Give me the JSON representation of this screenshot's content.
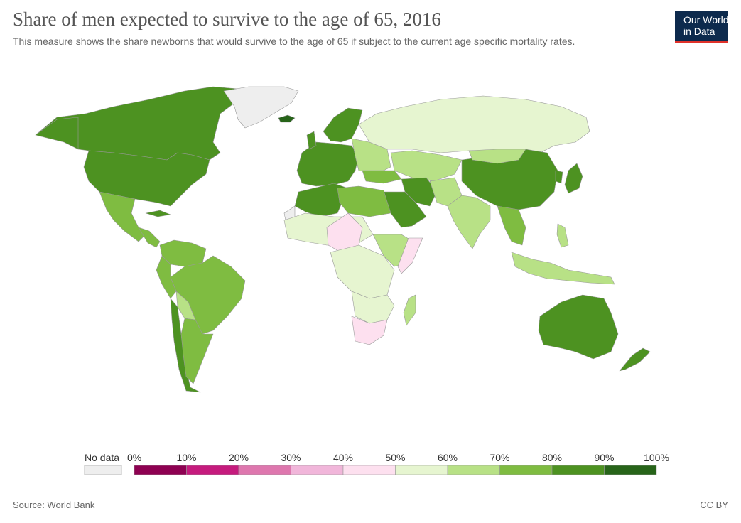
{
  "header": {
    "title": "Share of men expected to survive to the age of 65, 2016",
    "subtitle": "This measure shows the share newborns that would survive to the age of 65 if subject to the current age specific mortality rates."
  },
  "logo": {
    "line1": "Our World",
    "line2": "in Data",
    "bg": "#0d2a4d",
    "accent": "#e0322b"
  },
  "legend": {
    "no_data_label": "No data",
    "no_data_color": "#eeeeee",
    "ticks": [
      "0%",
      "10%",
      "20%",
      "30%",
      "40%",
      "50%",
      "60%",
      "70%",
      "80%",
      "90%",
      "100%"
    ],
    "colors": [
      "#8e0152",
      "#c51b7d",
      "#de77ae",
      "#f1b6da",
      "#fde0ef",
      "#e6f5d0",
      "#b8e186",
      "#7fbc41",
      "#4d9221",
      "#276419"
    ]
  },
  "footer": {
    "source": "Source: World Bank",
    "license": "CC BY"
  },
  "chart_data": {
    "type": "choropleth",
    "value_units": "%",
    "scale": [
      0,
      100
    ],
    "bins": [
      0,
      10,
      20,
      30,
      40,
      50,
      60,
      70,
      80,
      90,
      100
    ],
    "regions": [
      {
        "name": "Canada",
        "bin": "80-90%"
      },
      {
        "name": "United States",
        "bin": "80-90%"
      },
      {
        "name": "Greenland",
        "bin": "No data"
      },
      {
        "name": "Iceland",
        "bin": "90-100%"
      },
      {
        "name": "Mexico",
        "bin": "70-80%"
      },
      {
        "name": "Brazil",
        "bin": "70-80%"
      },
      {
        "name": "Bolivia",
        "bin": "60-70%"
      },
      {
        "name": "Chile",
        "bin": "80-90%"
      },
      {
        "name": "Argentina",
        "bin": "70-80%"
      },
      {
        "name": "Western Europe",
        "bin": "80-90%"
      },
      {
        "name": "Russia",
        "bin": "50-60%"
      },
      {
        "name": "China",
        "bin": "80-90%"
      },
      {
        "name": "Japan",
        "bin": "80-90%"
      },
      {
        "name": "India",
        "bin": "60-70%"
      },
      {
        "name": "Saudi Arabia",
        "bin": "80-90%"
      },
      {
        "name": "Algeria",
        "bin": "80-90%"
      },
      {
        "name": "Egypt",
        "bin": "70-80%"
      },
      {
        "name": "Nigeria",
        "bin": "40-50%"
      },
      {
        "name": "Somalia",
        "bin": "40-50%"
      },
      {
        "name": "South Africa",
        "bin": "40-50%"
      },
      {
        "name": "Madagascar",
        "bin": "60-70%"
      },
      {
        "name": "Indonesia",
        "bin": "60-70%"
      },
      {
        "name": "Australia",
        "bin": "80-90%"
      },
      {
        "name": "New Zealand",
        "bin": "80-90%"
      }
    ]
  }
}
